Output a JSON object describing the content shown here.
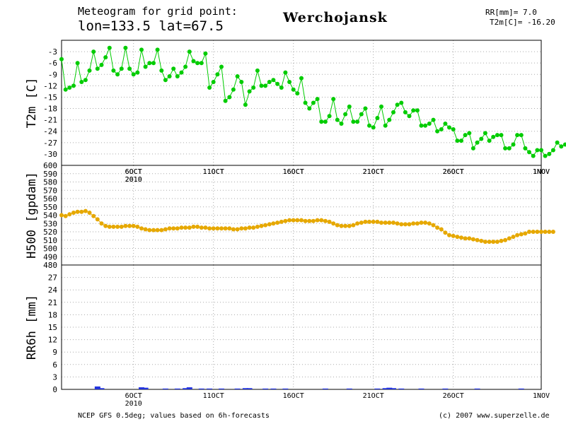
{
  "header": {
    "line1": "Meteogram for grid point:",
    "line2": "lon=133.5 lat=67.5",
    "station": "Werchojansk",
    "rr_current": "RR[mm]= 7.0",
    "t2m_current": "T2m[C]= -16.20"
  },
  "footer": {
    "source": "NCEP GFS 0.5deg; values based on 6h-forecasts",
    "credit": "(c) 2007 www.superzelle.de"
  },
  "colors": {
    "t2m": "#00cc00",
    "h500": "#e6a800",
    "rr": "#2233dd",
    "grid": "#aaaaaa"
  },
  "chart_data": [
    {
      "type": "line",
      "ylabel": "T2m [C]",
      "xlabel": "",
      "ylim": [
        -33,
        0
      ],
      "yticks": [
        -3,
        -6,
        -9,
        -12,
        -15,
        -18,
        -21,
        -24,
        -27,
        -30
      ],
      "xlim": [
        0,
        30
      ],
      "x_ticks": [
        {
          "x": 4.5,
          "label": "6OCT",
          "sub": "2010"
        },
        {
          "x": 9.5,
          "label": "11OCT",
          "sub": ""
        },
        {
          "x": 14.5,
          "label": "16OCT",
          "sub": ""
        },
        {
          "x": 19.5,
          "label": "21OCT",
          "sub": ""
        },
        {
          "x": 24.5,
          "label": "26OCT",
          "sub": ""
        },
        {
          "x": 30,
          "label": "1NOV",
          "sub": ""
        }
      ],
      "grid": true,
      "series": [
        {
          "step_days": 0.25,
          "values": [
            -5,
            -13,
            -12.5,
            -12,
            -6,
            -11,
            -10.5,
            -8,
            -3,
            -7.5,
            -6.5,
            -4.5,
            -2,
            -8,
            -9,
            -7.5,
            -2,
            -7.5,
            -9,
            -8.5,
            -2.5,
            -7,
            -6,
            -6,
            -2.5,
            -8,
            -10.5,
            -9.5,
            -7.5,
            -9.5,
            -8.5,
            -7,
            -3,
            -5.5,
            -6,
            -6,
            -3.5,
            -12.5,
            -11,
            -9,
            -7,
            -16,
            -15,
            -13,
            -9.5,
            -11,
            -17,
            -13.5,
            -12.5,
            -8,
            -12,
            -12,
            -11,
            -10.5,
            -11.5,
            -12.5,
            -8.5,
            -11,
            -13,
            -14,
            -10,
            -16.5,
            -18,
            -16.5,
            -15.5,
            -21.5,
            -21.5,
            -20,
            -15.5,
            -21,
            -22,
            -19.5,
            -17.5,
            -21.5,
            -21.5,
            -19.5,
            -18,
            -22.5,
            -23,
            -20.5,
            -17.5,
            -22.5,
            -21,
            -19,
            -17,
            -16.5,
            -19,
            -20,
            -18.5,
            -18.5,
            -22.5,
            -22.5,
            -22,
            -21,
            -24,
            -23.5,
            -22,
            -23,
            -23.5,
            -26.5,
            -26.5,
            -25,
            -24.5,
            -28.5,
            -27,
            -26,
            -24.5,
            -26.5,
            -25.5,
            -25,
            -25,
            -28.5,
            -28.5,
            -27.5,
            -25,
            -25,
            -28.5,
            -29.5,
            -30.5,
            -29,
            -29,
            -30.5,
            -30,
            -29,
            -27,
            -28,
            -27.5
          ]
        }
      ]
    },
    {
      "type": "line",
      "ylabel": "H500 [gpdam]",
      "xlabel": "",
      "ylim": [
        480,
        600
      ],
      "yticks": [
        480,
        490,
        500,
        510,
        520,
        530,
        540,
        550,
        560,
        570,
        580,
        590,
        600
      ],
      "xlim": [
        0,
        30
      ],
      "grid": true,
      "series": [
        {
          "step_days": 0.25,
          "values": [
            540,
            539,
            541,
            543,
            544,
            544,
            545,
            543,
            539,
            535,
            530,
            527,
            526,
            526,
            526,
            526,
            527,
            527,
            527,
            526,
            524,
            523,
            522,
            522,
            522,
            522,
            523,
            524,
            524,
            524,
            525,
            525,
            525,
            526,
            526,
            525,
            525,
            524,
            524,
            524,
            524,
            524,
            524,
            523,
            523,
            524,
            524,
            525,
            525,
            526,
            527,
            528,
            529,
            530,
            531,
            532,
            533,
            534,
            534,
            534,
            534,
            533,
            533,
            533,
            534,
            534,
            533,
            532,
            530,
            528,
            527,
            527,
            527,
            528,
            530,
            531,
            532,
            532,
            532,
            532,
            531,
            531,
            531,
            531,
            530,
            529,
            529,
            529,
            530,
            530,
            531,
            531,
            530,
            528,
            525,
            523,
            519,
            516,
            515,
            514,
            513,
            512,
            512,
            511,
            510,
            509,
            508,
            508,
            508,
            508,
            509,
            510,
            512,
            514,
            516,
            517,
            518,
            520,
            520,
            520,
            520,
            520,
            520,
            520
          ]
        }
      ]
    },
    {
      "type": "bar",
      "ylabel": "RR6h [mm]",
      "xlabel": "",
      "ylim": [
        0,
        30
      ],
      "yticks": [
        0,
        3,
        6,
        9,
        12,
        15,
        18,
        21,
        24,
        27
      ],
      "xlim": [
        0,
        30
      ],
      "x_ticks": [
        {
          "x": 4.5,
          "label": "6OCT",
          "sub": "2010"
        },
        {
          "x": 9.5,
          "label": "11OCT",
          "sub": ""
        },
        {
          "x": 14.5,
          "label": "16OCT",
          "sub": ""
        },
        {
          "x": 19.5,
          "label": "21OCT",
          "sub": ""
        },
        {
          "x": 24.5,
          "label": "26OCT",
          "sub": ""
        },
        {
          "x": 30,
          "label": "1NOV",
          "sub": ""
        }
      ],
      "grid": true,
      "series": [
        {
          "bars": [
            {
              "x": 2.25,
              "v": 0.7
            },
            {
              "x": 2.5,
              "v": 0.3
            },
            {
              "x": 5.0,
              "v": 0.5
            },
            {
              "x": 5.25,
              "v": 0.4
            },
            {
              "x": 6.5,
              "v": 0.2
            },
            {
              "x": 7.25,
              "v": 0.2
            },
            {
              "x": 7.75,
              "v": 0.3
            },
            {
              "x": 8.0,
              "v": 0.5
            },
            {
              "x": 8.75,
              "v": 0.2
            },
            {
              "x": 9.25,
              "v": 0.2
            },
            {
              "x": 10.0,
              "v": 0.2
            },
            {
              "x": 11.0,
              "v": 0.2
            },
            {
              "x": 11.5,
              "v": 0.3
            },
            {
              "x": 11.75,
              "v": 0.3
            },
            {
              "x": 12.75,
              "v": 0.2
            },
            {
              "x": 13.25,
              "v": 0.2
            },
            {
              "x": 14.0,
              "v": 0.2
            },
            {
              "x": 16.5,
              "v": 0.2
            },
            {
              "x": 18.0,
              "v": 0.2
            },
            {
              "x": 19.75,
              "v": 0.2
            },
            {
              "x": 20.25,
              "v": 0.3
            },
            {
              "x": 20.5,
              "v": 0.4
            },
            {
              "x": 20.75,
              "v": 0.3
            },
            {
              "x": 21.25,
              "v": 0.2
            },
            {
              "x": 22.5,
              "v": 0.2
            },
            {
              "x": 24.0,
              "v": 0.2
            },
            {
              "x": 26.0,
              "v": 0.2
            },
            {
              "x": 28.75,
              "v": 0.2
            }
          ]
        }
      ]
    }
  ]
}
